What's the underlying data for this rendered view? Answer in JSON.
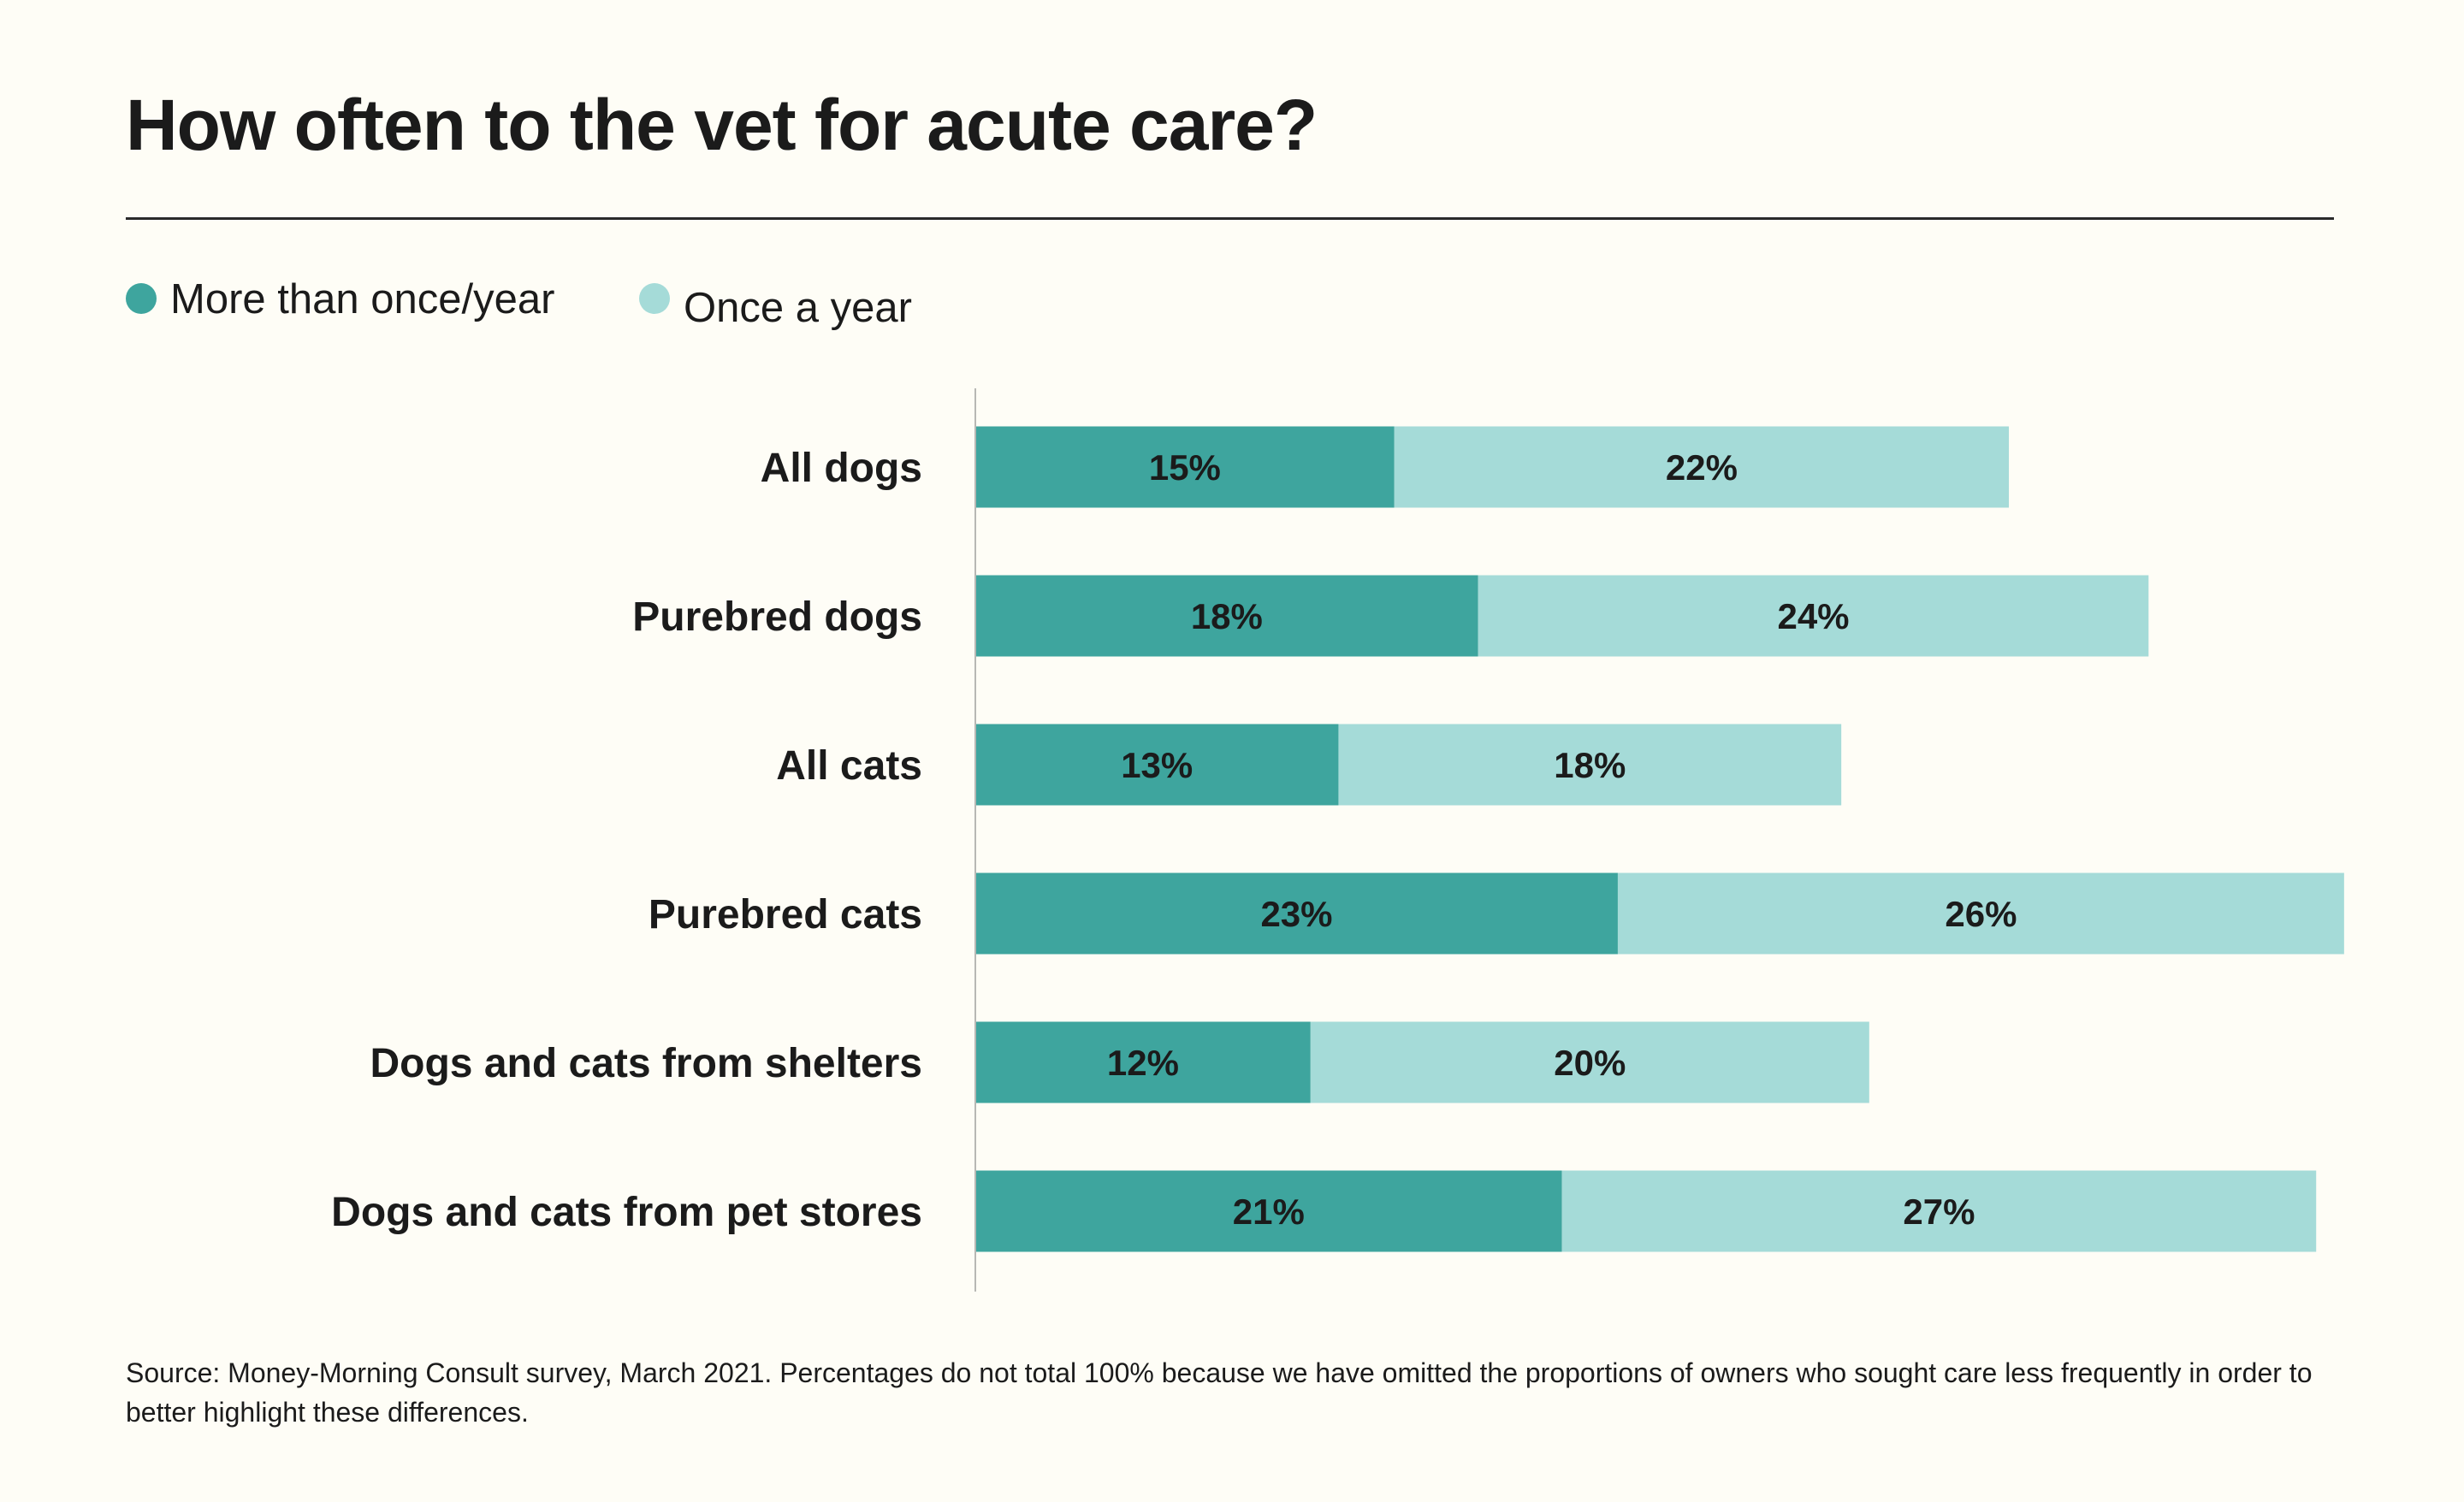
{
  "chart_data": {
    "type": "bar",
    "orientation": "horizontal",
    "stacked": true,
    "title": "How often to the vet for acute care?",
    "categories": [
      "All dogs",
      "Purebred dogs",
      "All cats",
      "Purebred cats",
      "Dogs and cats from shelters",
      "Dogs and cats from pet stores"
    ],
    "series": [
      {
        "name": "More than once/year",
        "color": "#3ea59e",
        "values": [
          15,
          18,
          13,
          23,
          12,
          21
        ]
      },
      {
        "name": "Once a year",
        "color": "#a5dbd8",
        "values": [
          22,
          24,
          18,
          26,
          20,
          27
        ]
      }
    ],
    "value_suffix": "%",
    "xlabel": "",
    "ylabel": "",
    "xlim": [
      0,
      49
    ],
    "grid": false,
    "legend_position": "top-left",
    "footnote": "Source: Money-Morning Consult survey, March 2021. Percentages do not total 100% because we have omitted the proportions of owners who sought care less frequently in order to better highlight these differences."
  },
  "legend": [
    {
      "label": "More than once/year",
      "color": "#3ea59e"
    },
    {
      "label": "Once a year",
      "color": "#a5dbd8"
    }
  ]
}
